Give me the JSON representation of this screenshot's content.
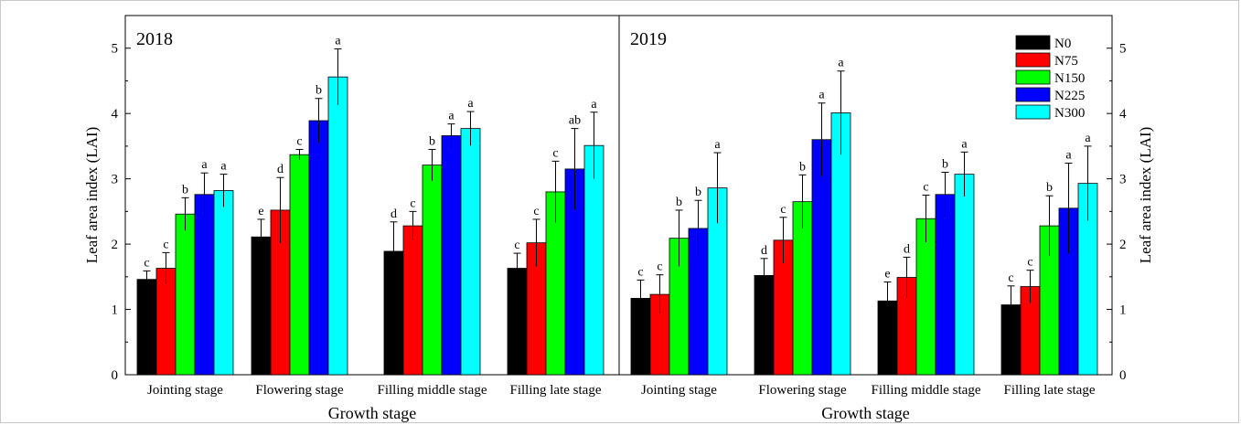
{
  "chart_data": {
    "type": "bar",
    "categories": [
      "Jointing stage",
      "Flowering stage",
      "Filling middle stage",
      "Filling late stage"
    ],
    "xlabel": "Growth stage",
    "ylabel": "Leaf area index (LAI)",
    "ylim": [
      0,
      5.5
    ],
    "yticks": [
      "0",
      "1",
      "2",
      "3",
      "4",
      "5"
    ],
    "legend_placement": "top-right",
    "series_names": [
      "N0",
      "N75",
      "N150",
      "N225",
      "N300"
    ],
    "colors": [
      "#000000",
      "#ff0000",
      "#00ff00",
      "#0000ff",
      "#00ffff"
    ],
    "panels": [
      {
        "title": "2018",
        "values": [
          [
            1.46,
            1.63,
            2.46,
            2.76,
            2.82
          ],
          [
            2.11,
            2.52,
            3.37,
            3.89,
            4.56
          ],
          [
            1.89,
            2.28,
            3.21,
            3.66,
            3.77
          ],
          [
            1.63,
            2.02,
            2.8,
            3.15,
            3.51
          ]
        ],
        "errors": [
          [
            0.13,
            0.24,
            0.25,
            0.33,
            0.25
          ],
          [
            0.27,
            0.5,
            0.08,
            0.34,
            0.43
          ],
          [
            0.45,
            0.22,
            0.24,
            0.18,
            0.26
          ],
          [
            0.23,
            0.36,
            0.47,
            0.62,
            0.51
          ]
        ],
        "letters": [
          [
            "c",
            "c",
            "b",
            "a",
            "a"
          ],
          [
            "e",
            "d",
            "c",
            "b",
            "a"
          ],
          [
            "d",
            "c",
            "b",
            "a",
            "a"
          ],
          [
            "c",
            "c",
            "c",
            "ab",
            "a"
          ]
        ]
      },
      {
        "title": "2019",
        "values": [
          [
            1.17,
            1.23,
            2.09,
            2.24,
            2.86
          ],
          [
            1.52,
            2.06,
            2.65,
            3.6,
            4.01
          ],
          [
            1.13,
            1.49,
            2.39,
            2.76,
            3.07
          ],
          [
            1.07,
            1.35,
            2.28,
            2.55,
            2.93
          ]
        ],
        "errors": [
          [
            0.28,
            0.3,
            0.43,
            0.43,
            0.54
          ],
          [
            0.26,
            0.35,
            0.41,
            0.56,
            0.64
          ],
          [
            0.29,
            0.31,
            0.36,
            0.34,
            0.34
          ],
          [
            0.29,
            0.25,
            0.46,
            0.69,
            0.57
          ]
        ],
        "letters": [
          [
            "c",
            "c",
            "b",
            "b",
            "a"
          ],
          [
            "d",
            "c",
            "b",
            "a",
            "a"
          ],
          [
            "e",
            "d",
            "c",
            "b",
            "a"
          ],
          [
            "c",
            "c",
            "b",
            "a",
            "a"
          ]
        ]
      }
    ]
  }
}
